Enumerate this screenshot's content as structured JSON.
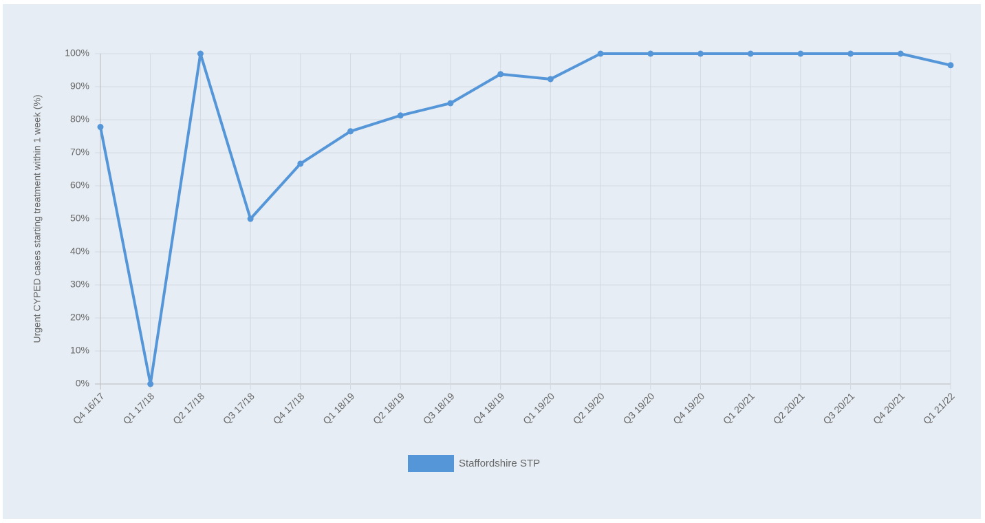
{
  "chart_data": {
    "type": "line",
    "y_label": "Urgent CYPED cases starting treatment within 1 week (%)",
    "categories": [
      "Q4 16/17",
      "Q1 17/18",
      "Q2 17/18",
      "Q3 17/18",
      "Q4 17/18",
      "Q1 18/19",
      "Q2 18/19",
      "Q3 18/19",
      "Q4 18/19",
      "Q1 19/20",
      "Q2 19/20",
      "Q3 19/20",
      "Q4 19/20",
      "Q1 20/21",
      "Q2 20/21",
      "Q3 20/21",
      "Q4 20/21",
      "Q1 21/22"
    ],
    "series": [
      {
        "name": "Staffordshire STP",
        "color": "#5596d9",
        "values": [
          77.8,
          0,
          100,
          50,
          66.7,
          76.5,
          81.3,
          85,
          93.8,
          92.3,
          100,
          100,
          100,
          100,
          100,
          100,
          100,
          96.5
        ]
      }
    ],
    "ylim": [
      0,
      100
    ],
    "yticks": [
      {
        "value": 0,
        "label": "0%"
      },
      {
        "value": 10,
        "label": "10%"
      },
      {
        "value": 20,
        "label": "20%"
      },
      {
        "value": 30,
        "label": "30%"
      },
      {
        "value": 40,
        "label": "40%"
      },
      {
        "value": 50,
        "label": "50%"
      },
      {
        "value": 60,
        "label": "60%"
      },
      {
        "value": 70,
        "label": "70%"
      },
      {
        "value": 80,
        "label": "80%"
      },
      {
        "value": 90,
        "label": "90%"
      },
      {
        "value": 100,
        "label": "100%"
      }
    ],
    "grid": true,
    "legend": "bottom"
  }
}
